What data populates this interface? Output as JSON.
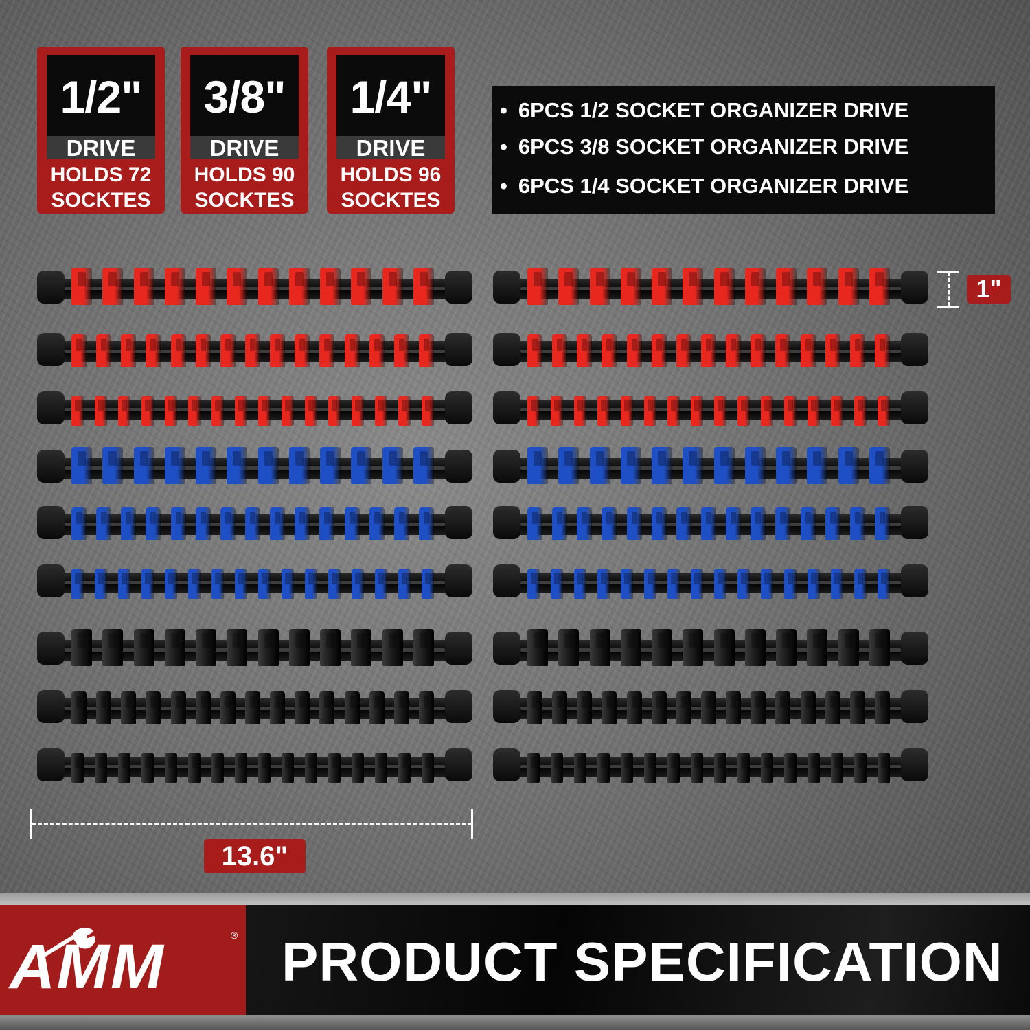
{
  "badges": [
    {
      "size": "1/2\"",
      "drive": "DRIVE",
      "holds_line1": "HOLDS 72",
      "holds_line2": "SOCKTES"
    },
    {
      "size": "3/8\"",
      "drive": "DRIVE",
      "holds_line1": "HOLDS 90",
      "holds_line2": "SOCKTES"
    },
    {
      "size": "1/4\"",
      "drive": "DRIVE",
      "holds_line1": "HOLDS 96",
      "holds_line2": "SOCKTES"
    }
  ],
  "spec_list": [
    "6PCS 1/2 SOCKET ORGANIZER DRIVE",
    "6PCS 3/8 SOCKET ORGANIZER DRIVE",
    "6PCS 1/4 SOCKET ORGANIZER DRIVE"
  ],
  "rails": {
    "rows": [
      {
        "color": "#e8281f",
        "clips": 12,
        "drive": "1/2"
      },
      {
        "color": "#e8281f",
        "clips": 15,
        "drive": "3/8"
      },
      {
        "color": "#e8281f",
        "clips": 16,
        "drive": "1/4"
      },
      {
        "color": "#1f4fc4",
        "clips": 12,
        "drive": "1/2"
      },
      {
        "color": "#1f4fc4",
        "clips": 15,
        "drive": "3/8"
      },
      {
        "color": "#1f4fc4",
        "clips": 16,
        "drive": "1/4"
      },
      {
        "color": "#1a1a1a",
        "clips": 12,
        "drive": "1/2"
      },
      {
        "color": "#1a1a1a",
        "clips": 15,
        "drive": "3/8"
      },
      {
        "color": "#1a1a1a",
        "clips": 16,
        "drive": "1/4"
      }
    ],
    "columns": 2
  },
  "dimensions": {
    "length": "13.6\"",
    "height": "1\""
  },
  "banner": {
    "brand": "AMM",
    "registered": "®",
    "title": "PRODUCT SPECIFICATION"
  },
  "colors": {
    "accent_red": "#a81c1c",
    "panel_black": "#0b0b0b",
    "rail_black": "#0a0a0a"
  },
  "icons": [
    "wrench-icon"
  ]
}
